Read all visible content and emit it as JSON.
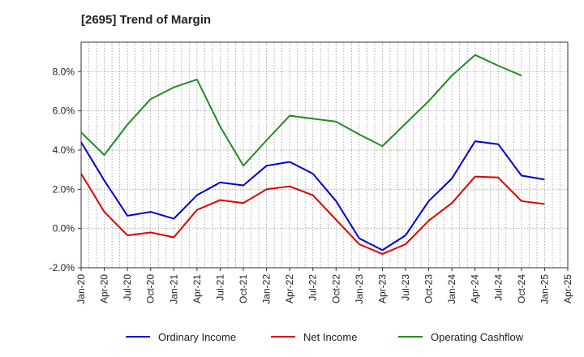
{
  "chart_data": {
    "type": "line",
    "title": "[2695]  Trend of Margin",
    "x": [
      "Jan-20",
      "Apr-20",
      "Jul-20",
      "Oct-20",
      "Jan-21",
      "Apr-21",
      "Jul-21",
      "Oct-21",
      "Jan-22",
      "Apr-22",
      "Jul-22",
      "Oct-22",
      "Jan-23",
      "Apr-23",
      "Jul-23",
      "Oct-23",
      "Jan-24",
      "Apr-24",
      "Jul-24",
      "Oct-24",
      "Jan-25",
      "Apr-25"
    ],
    "y_ticks": [
      8.0,
      6.0,
      4.0,
      2.0,
      0.0,
      -2.0
    ],
    "y_tick_labels": [
      "8.0%",
      "6.0%",
      "4.0%",
      "2.0%",
      "0.0%",
      "-2.0%"
    ],
    "ylim": [
      -2.0,
      9.5
    ],
    "grid": true,
    "legend_position": "bottom",
    "series": [
      {
        "name": "Ordinary Income",
        "color": "#0000cc",
        "values": [
          4.4,
          2.45,
          0.65,
          0.85,
          0.5,
          1.7,
          2.35,
          2.2,
          3.2,
          3.4,
          2.8,
          1.4,
          -0.5,
          -1.1,
          -0.35,
          1.4,
          2.55,
          4.45,
          4.3,
          2.7,
          2.5,
          null
        ]
      },
      {
        "name": "Net Income",
        "color": "#dd0000",
        "values": [
          2.8,
          0.85,
          -0.35,
          -0.2,
          -0.45,
          0.95,
          1.45,
          1.3,
          2.0,
          2.15,
          1.7,
          0.45,
          -0.8,
          -1.3,
          -0.8,
          0.4,
          1.3,
          2.65,
          2.6,
          1.4,
          1.25,
          null
        ]
      },
      {
        "name": "Operating Cashflow",
        "color": "#228b22",
        "values": [
          4.9,
          3.75,
          5.3,
          6.6,
          7.2,
          7.6,
          5.2,
          3.2,
          4.5,
          5.75,
          5.6,
          5.45,
          4.8,
          4.2,
          5.35,
          6.5,
          7.8,
          8.85,
          8.3,
          7.8,
          null,
          null
        ]
      }
    ]
  }
}
